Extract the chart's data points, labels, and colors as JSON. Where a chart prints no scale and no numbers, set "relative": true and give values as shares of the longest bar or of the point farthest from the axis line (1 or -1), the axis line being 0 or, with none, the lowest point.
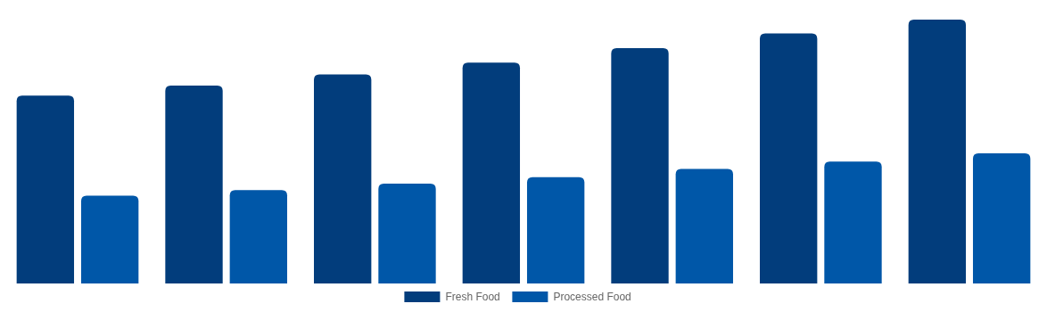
{
  "chart_data": {
    "type": "bar",
    "relative": true,
    "categories": [
      null,
      null,
      null,
      null,
      null,
      null,
      null
    ],
    "legend": "bottom",
    "series": [
      {
        "name": "Fresh Food",
        "color": "#023d7c",
        "values": [
          0.712,
          0.75,
          0.792,
          0.837,
          0.892,
          0.948,
          1
        ]
      },
      {
        "name": "Processed Food",
        "color": "#0057a8",
        "values": [
          0.333,
          0.354,
          0.378,
          0.403,
          0.434,
          0.462,
          0.493
        ]
      }
    ]
  }
}
